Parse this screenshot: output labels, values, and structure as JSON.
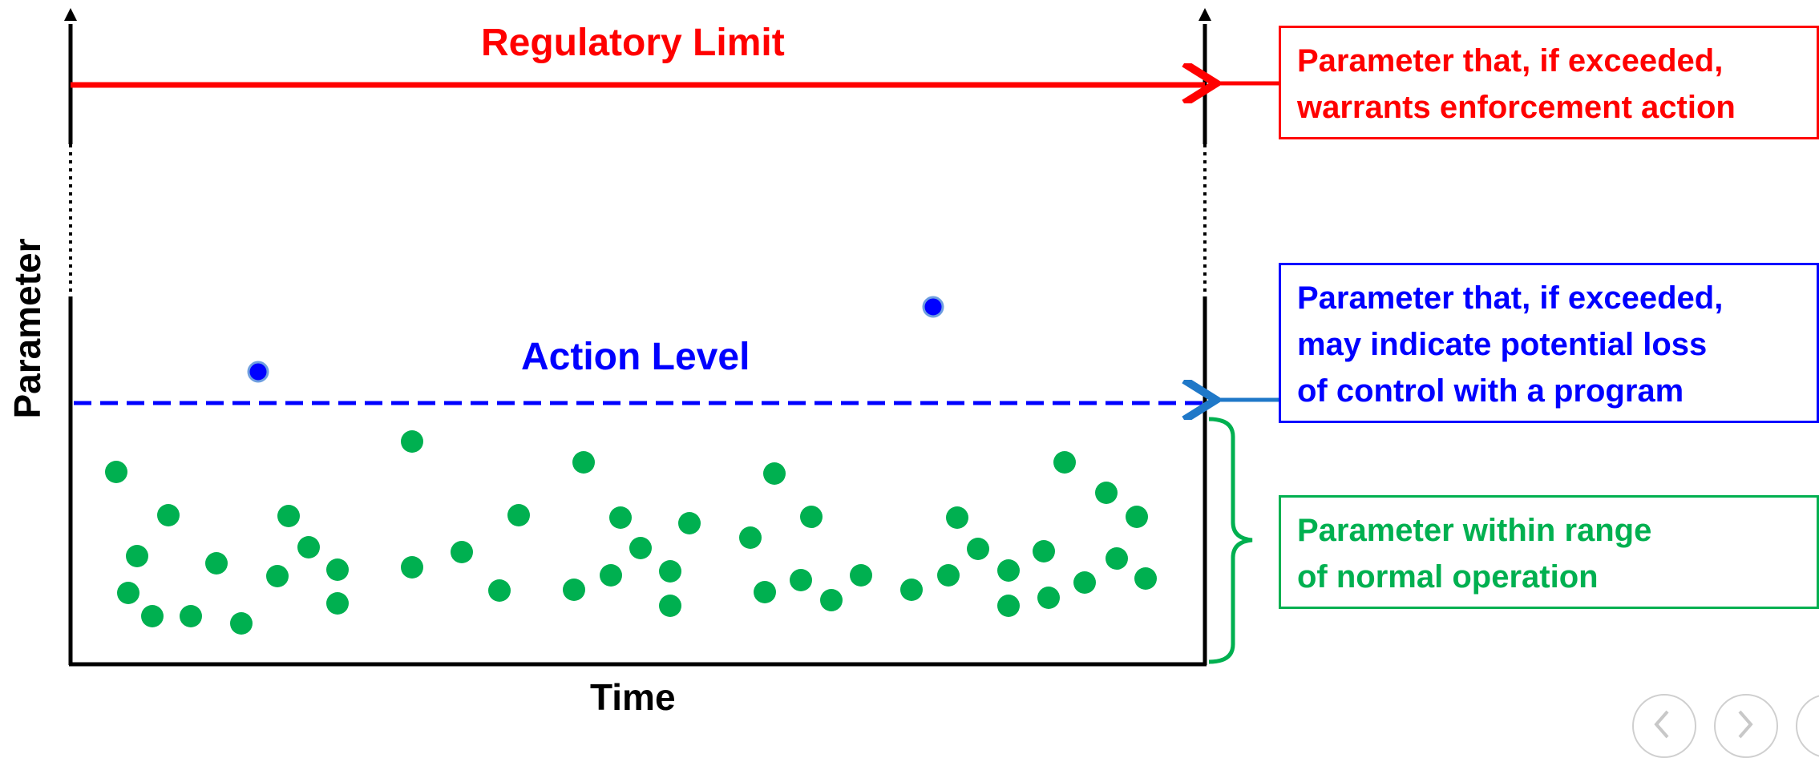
{
  "diagram": {
    "x_axis_label": "Time",
    "y_axis_label": "Parameter",
    "regulatory_limit": {
      "label": "Regulatory Limit",
      "color": "#ff0000",
      "description_lines": [
        "Parameter that, if exceeded,",
        "warrants enforcement action"
      ]
    },
    "action_level": {
      "label": "Action Level",
      "color": "#0000ff",
      "arrow_color": "#1f78c8",
      "description_lines": [
        "Parameter that, if exceeded,",
        "may indicate potential loss",
        "of control with a program"
      ]
    },
    "normal_range": {
      "color": "#00b050",
      "description_lines": [
        "Parameter within range",
        "of normal operation"
      ]
    },
    "points_above_action_level": 2,
    "points_in_normal_range": 52
  },
  "nav": {
    "buttons": [
      "previous-slide",
      "next-slide",
      "more"
    ]
  }
}
